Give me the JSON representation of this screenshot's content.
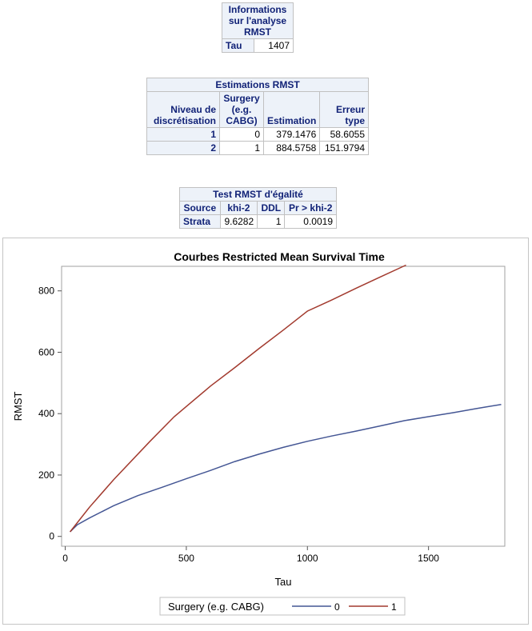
{
  "info_table": {
    "caption": "Informations sur l'analyse RMST",
    "rows": [
      {
        "label": "Tau",
        "value": "1407"
      }
    ]
  },
  "estimates_table": {
    "caption": "Estimations RMST",
    "headers": [
      "Niveau de discrétisation",
      "Surgery (e.g. CABG)",
      "Estimation",
      "Erreur type"
    ],
    "rows": [
      {
        "level": "1",
        "surgery": "0",
        "estimation": "379.1476",
        "stderr": "58.6055"
      },
      {
        "level": "2",
        "surgery": "1",
        "estimation": "884.5758",
        "stderr": "151.9794"
      }
    ]
  },
  "test_table": {
    "caption": "Test RMST d'égalité",
    "headers": [
      "Source",
      "khi-2",
      "DDL",
      "Pr > khi-2"
    ],
    "rows": [
      {
        "source": "Strata",
        "chisq": "9.6282",
        "df": "1",
        "p": "0.0019"
      }
    ]
  },
  "chart_data": {
    "type": "line",
    "title": "Courbes Restricted Mean Survival Time",
    "xlabel": "Tau",
    "ylabel": "RMST",
    "xlim": [
      0,
      1800
    ],
    "ylim": [
      0,
      900
    ],
    "xticks": [
      0,
      500,
      1000,
      1500
    ],
    "yticks": [
      0,
      200,
      400,
      600,
      800
    ],
    "grid": false,
    "legend_title": "Surgery (e.g. CABG)",
    "legend_position": "bottom",
    "series": [
      {
        "name": "0",
        "color": "#445694",
        "x": [
          20,
          50,
          100,
          200,
          300,
          400,
          500,
          600,
          700,
          800,
          900,
          1000,
          1100,
          1200,
          1300,
          1400,
          1500,
          1600,
          1700,
          1800
        ],
        "y": [
          15,
          38,
          60,
          100,
          133,
          160,
          188,
          215,
          244,
          268,
          290,
          310,
          327,
          343,
          360,
          377,
          390,
          403,
          417,
          430
        ]
      },
      {
        "name": "1",
        "color": "#a23a2e",
        "x": [
          20,
          100,
          200,
          350,
          450,
          600,
          700,
          800,
          900,
          1000,
          1100,
          1200,
          1300,
          1407
        ],
        "y": [
          15,
          95,
          185,
          310,
          390,
          490,
          550,
          612,
          672,
          734,
          770,
          808,
          845,
          884
        ]
      }
    ]
  }
}
